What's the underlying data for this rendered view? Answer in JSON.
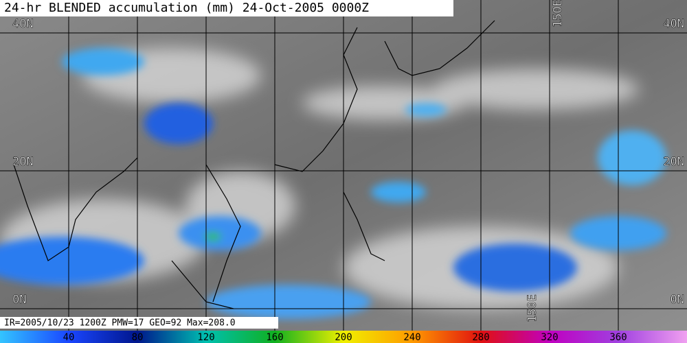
{
  "title": "24-hr BLENDED accumulation (mm) 24-Oct-2005 0000Z",
  "footer": "IR=2005/10/23 1200Z PMW=17 GEO=92 Max=208.0",
  "lat_labels": [
    "40N",
    "20N",
    "0N"
  ],
  "lon_labels": [
    "150E",
    "150E"
  ],
  "colorbar": {
    "ticks": [
      40,
      80,
      120,
      160,
      200,
      240,
      280,
      320,
      360
    ]
  }
}
